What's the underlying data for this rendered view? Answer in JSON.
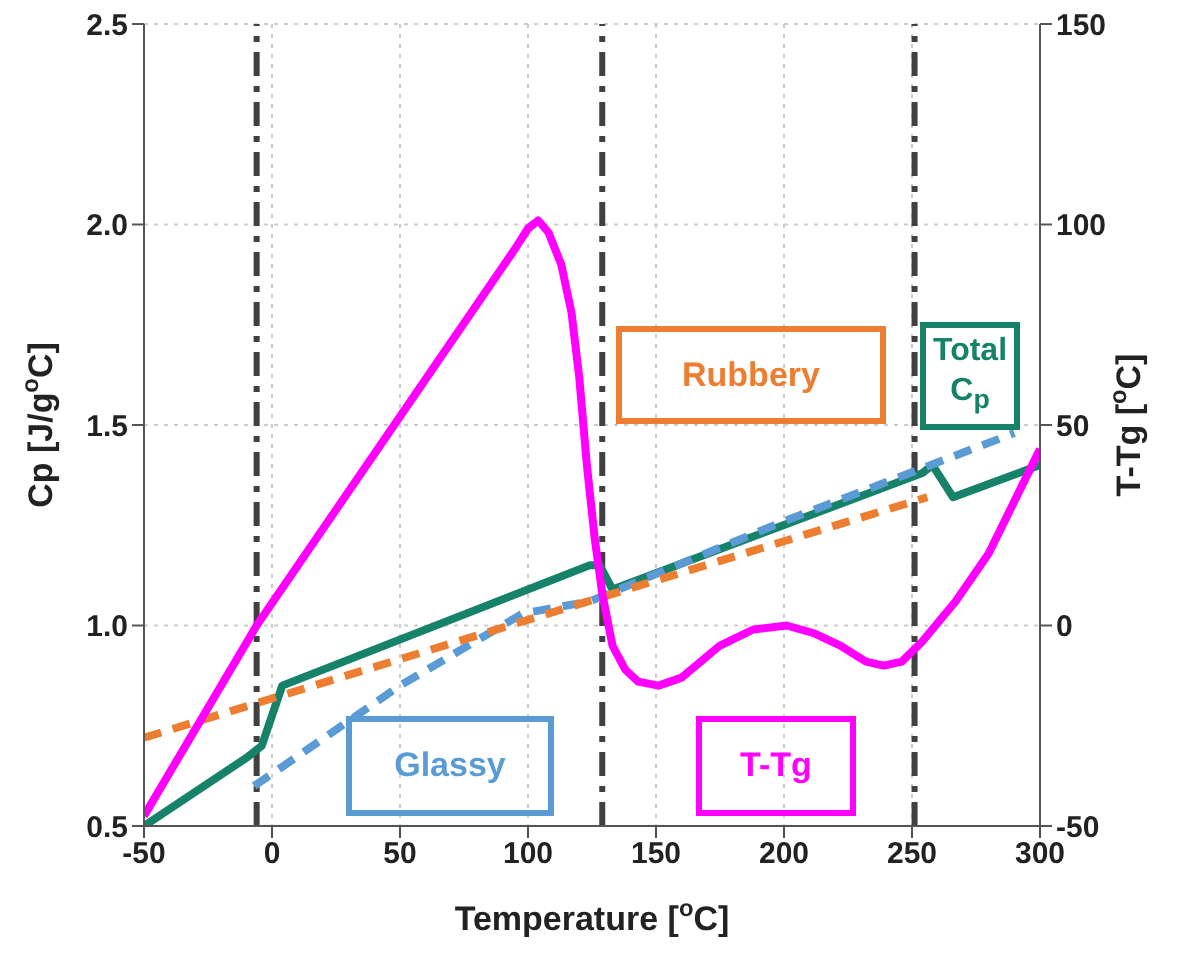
{
  "chart_data": {
    "type": "line",
    "xlabel": "Temperature [$^{o}$C]",
    "ylabel": "Cp [J/g$^{o}$C]",
    "y2label": "T-Tg [$^{o}$C]",
    "xlim": [
      -50,
      300
    ],
    "xticks": [
      -50,
      0,
      50,
      100,
      150,
      200,
      250,
      300
    ],
    "ylim": [
      0.5,
      2.5
    ],
    "yticks": [
      {
        "value": 0.5,
        "label": "0.5"
      },
      {
        "value": 1,
        "label": "1.0"
      },
      {
        "value": 1.5,
        "label": "1.5"
      },
      {
        "value": 2,
        "label": "2.0"
      },
      {
        "value": 2.5,
        "label": "2.5"
      }
    ],
    "y2lim": [
      -50,
      150
    ],
    "y2ticks": [
      -50,
      0,
      50,
      100,
      150
    ],
    "grid": true,
    "legend": false,
    "marker": "none",
    "series": [
      {
        "name": "Total C$_{p}$",
        "color": "#16826a",
        "x": [
          -50,
          -10,
          -4,
          4,
          124,
          128,
          133,
          254,
          258,
          266,
          300
        ],
        "values": [
          0.5,
          0.67,
          0.7,
          0.85,
          1.15,
          1.15,
          1.09,
          1.38,
          1.4,
          1.32,
          1.4
        ]
      },
      {
        "name": "Glassy",
        "color": "#5b9bd5",
        "line_style": "dashed",
        "x": [
          -7,
          0,
          50,
          98,
          124,
          200,
          290
        ],
        "values": [
          0.6,
          0.63,
          0.85,
          1.03,
          1.06,
          1.26,
          1.48
        ]
      },
      {
        "name": "Rubbery",
        "color": "#ed7d31",
        "line_style": "dashed",
        "x": [
          -50,
          256
        ],
        "values": [
          0.72,
          1.32
        ]
      },
      {
        "name": "T-Tg",
        "color": "#ff00ff",
        "axis": "y2",
        "x": [
          -50,
          -6,
          95,
          100,
          104,
          108,
          113,
          117,
          120,
          123,
          126,
          129,
          133,
          138,
          143,
          151,
          160,
          175,
          188,
          201,
          212,
          222,
          232,
          239,
          246,
          254,
          267,
          280,
          300
        ],
        "values": [
          -47.5,
          0,
          94,
          99,
          101,
          98,
          90,
          78,
          62,
          40,
          22,
          8,
          -5,
          -11,
          -14,
          -15,
          -13,
          -5,
          -1,
          0,
          -2,
          -5,
          -9,
          -10,
          -9,
          -4,
          6,
          18,
          44
        ]
      }
    ],
    "ref_lines": [
      {
        "axis": "x",
        "value": -6,
        "color": "#404040"
      },
      {
        "axis": "x",
        "value": 129,
        "color": "#404040"
      },
      {
        "axis": "x",
        "value": 251,
        "color": "#404040"
      }
    ]
  }
}
